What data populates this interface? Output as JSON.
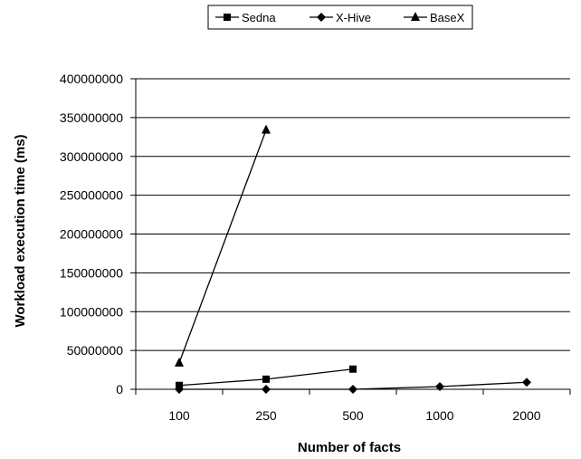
{
  "chart_data": {
    "type": "line",
    "categories": [
      "100",
      "250",
      "500",
      "1000",
      "2000"
    ],
    "xlabel": "Number of facts",
    "ylabel": "Workload execution time (ms)",
    "ylim": [
      0,
      400000000
    ],
    "yticks": [
      "0",
      "50000000",
      "100000000",
      "150000000",
      "200000000",
      "250000000",
      "300000000",
      "350000000",
      "400000000"
    ],
    "grid": "horizontal",
    "legend_position": "top",
    "series": [
      {
        "name": "Sedna",
        "marker": "square",
        "values": [
          5000000,
          13000000,
          26000000,
          null,
          null
        ]
      },
      {
        "name": "X-Hive",
        "marker": "diamond",
        "values": [
          0,
          0,
          0,
          3500000,
          9000000
        ]
      },
      {
        "name": "BaseX",
        "marker": "triangle",
        "values": [
          34000000,
          334000000,
          null,
          null,
          null
        ]
      }
    ],
    "colors": {
      "line": "#000000",
      "grid": "#000000",
      "background": "#ffffff"
    }
  }
}
